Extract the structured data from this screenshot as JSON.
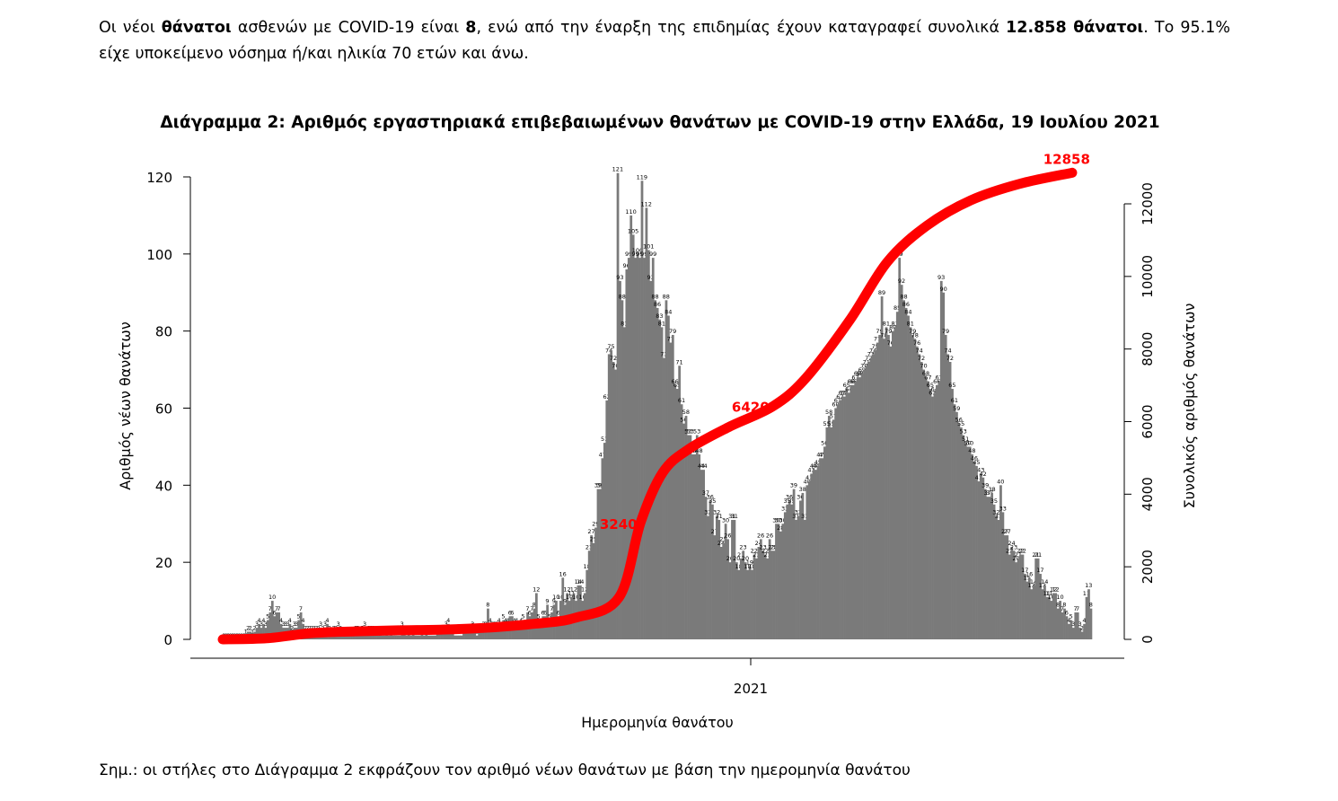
{
  "intro": {
    "p1": "Οι νέοι ",
    "b1": "θάνατοι",
    "p2": " ασθενών με COVID-19 είναι ",
    "b2": "8",
    "p3": ", ενώ από την έναρξη της επιδημίας έχουν καταγραφεί συνολικά ",
    "b3": "12.858 θάνατοι",
    "p4": ".  Το 95.1% είχε υποκείμενο νόσημα ή/και ηλικία 70 ετών και άνω."
  },
  "note": "Σημ.: οι στήλες στο Διάγραμμα 2 εκφράζουν τον αριθμό νέων θανάτων με βάση την ημερομηνία θανάτου",
  "chart_data": {
    "type": "bar",
    "title": "Διάγραμμα 2: Αριθμός εργαστηριακά επιβεβαιωμένων θανάτων με COVID-19 στην Ελλάδα, 19 Ιουλίου 2021",
    "xlabel": "Ημερομηνία θανάτου",
    "ylabel": "Αριθμός νέων θανάτων",
    "y2label": "Συνολικός αριθμός θανάτων",
    "ylim": [
      0,
      120
    ],
    "y2lim": [
      0,
      12000
    ],
    "yticks": [
      0,
      20,
      40,
      60,
      80,
      100,
      120
    ],
    "y2ticks": [
      0,
      2000,
      4000,
      6000,
      8000,
      10000,
      12000
    ],
    "xtick_label": "2021",
    "grid": false,
    "colors": {
      "bars": "#7a7a7a",
      "cumulative": "#ff0000",
      "annotation": "#ff0000"
    },
    "series": [
      {
        "name": "Νέοι θάνατοι",
        "kind": "bar",
        "values": [
          0,
          0,
          0,
          0,
          0,
          0,
          0,
          0,
          0,
          0,
          1,
          2,
          2,
          1,
          2,
          3,
          4,
          3,
          4,
          3,
          5,
          7,
          10,
          6,
          7,
          7,
          4,
          3,
          3,
          3,
          4,
          2,
          3,
          3,
          5,
          7,
          4,
          2,
          2,
          2,
          2,
          2,
          2,
          2,
          3,
          2,
          3,
          4,
          2,
          1,
          2,
          2,
          3,
          2,
          1,
          1,
          1,
          1,
          1,
          1,
          2,
          2,
          1,
          2,
          3,
          1,
          2,
          2,
          2,
          1,
          1,
          2,
          1,
          1,
          2,
          1,
          2,
          1,
          1,
          1,
          1,
          3,
          2,
          1,
          2,
          1,
          2,
          1,
          1,
          1,
          2,
          1,
          2,
          1,
          1,
          1,
          1,
          2,
          2,
          2,
          2,
          3,
          4,
          2,
          2,
          1,
          1,
          1,
          1,
          2,
          2,
          2,
          2,
          3,
          2,
          1,
          2,
          2,
          3,
          3,
          8,
          4,
          3,
          3,
          3,
          4,
          3,
          5,
          4,
          4,
          6,
          6,
          4,
          4,
          3,
          4,
          5,
          3,
          7,
          6,
          7,
          8,
          12,
          5,
          4,
          6,
          6,
          9,
          5,
          7,
          9,
          10,
          6,
          10,
          16,
          9,
          12,
          10,
          11,
          12,
          10,
          14,
          14,
          10,
          12,
          18,
          23,
          27,
          25,
          29,
          39,
          39,
          47,
          51,
          62,
          74,
          75,
          72,
          70,
          121,
          93,
          88,
          81,
          96,
          99,
          110,
          105,
          99,
          100,
          99,
          119,
          99,
          112,
          101,
          93,
          99,
          88,
          86,
          83,
          81,
          73,
          88,
          84,
          77,
          79,
          66,
          65,
          71,
          61,
          56,
          58,
          53,
          53,
          48,
          48,
          53,
          48,
          44,
          44,
          37,
          32,
          36,
          35,
          27,
          32,
          31,
          24,
          25,
          30,
          26,
          20,
          31,
          31,
          20,
          18,
          21,
          23,
          20,
          18,
          19,
          18,
          22,
          21,
          24,
          26,
          23,
          22,
          21,
          26,
          23,
          23,
          30,
          30,
          28,
          30,
          33,
          35,
          36,
          35,
          39,
          31,
          32,
          36,
          38,
          31,
          40,
          41,
          43,
          44,
          44,
          45,
          47,
          47,
          50,
          55,
          58,
          55,
          57,
          60,
          61,
          62,
          63,
          63,
          65,
          64,
          66,
          66,
          67,
          68,
          68,
          69,
          70,
          71,
          72,
          73,
          74,
          75,
          77,
          79,
          89,
          78,
          81,
          79,
          76,
          80,
          81,
          85,
          99,
          92,
          88,
          86,
          84,
          81,
          79,
          78,
          76,
          74,
          72,
          70,
          68,
          67,
          65,
          63,
          64,
          66,
          67,
          93,
          90,
          79,
          74,
          72,
          65,
          61,
          59,
          56,
          55,
          53,
          51,
          50,
          50,
          48,
          46,
          45,
          41,
          43,
          42,
          39,
          37,
          37,
          38,
          35,
          32,
          31,
          40,
          33,
          27,
          27,
          22,
          24,
          23,
          20,
          21,
          22,
          22,
          17,
          15,
          16,
          13,
          14,
          21,
          21,
          17,
          13,
          14,
          11,
          11,
          10,
          12,
          12,
          8,
          10,
          7,
          8,
          6,
          4,
          5,
          3,
          7,
          7,
          3,
          2,
          4,
          11,
          13,
          8
        ]
      },
      {
        "name": "Συνολικός αριθμός θανάτων",
        "kind": "line",
        "axis": "right",
        "points": [
          [
            0,
            0
          ],
          [
            20,
            30
          ],
          [
            40,
            170
          ],
          [
            60,
            220
          ],
          [
            80,
            250
          ],
          [
            100,
            270
          ],
          [
            120,
            320
          ],
          [
            140,
            420
          ],
          [
            160,
            590
          ],
          [
            180,
            1150
          ],
          [
            190,
            3240
          ],
          [
            200,
            4600
          ],
          [
            212,
            5250
          ],
          [
            230,
            5850
          ],
          [
            250,
            6420
          ],
          [
            265,
            7200
          ],
          [
            285,
            8800
          ],
          [
            302,
            10400
          ],
          [
            320,
            11400
          ],
          [
            340,
            12100
          ],
          [
            362,
            12550
          ],
          [
            386,
            12858
          ]
        ],
        "labels": [
          "3240",
          "6420",
          "12858"
        ]
      }
    ]
  }
}
